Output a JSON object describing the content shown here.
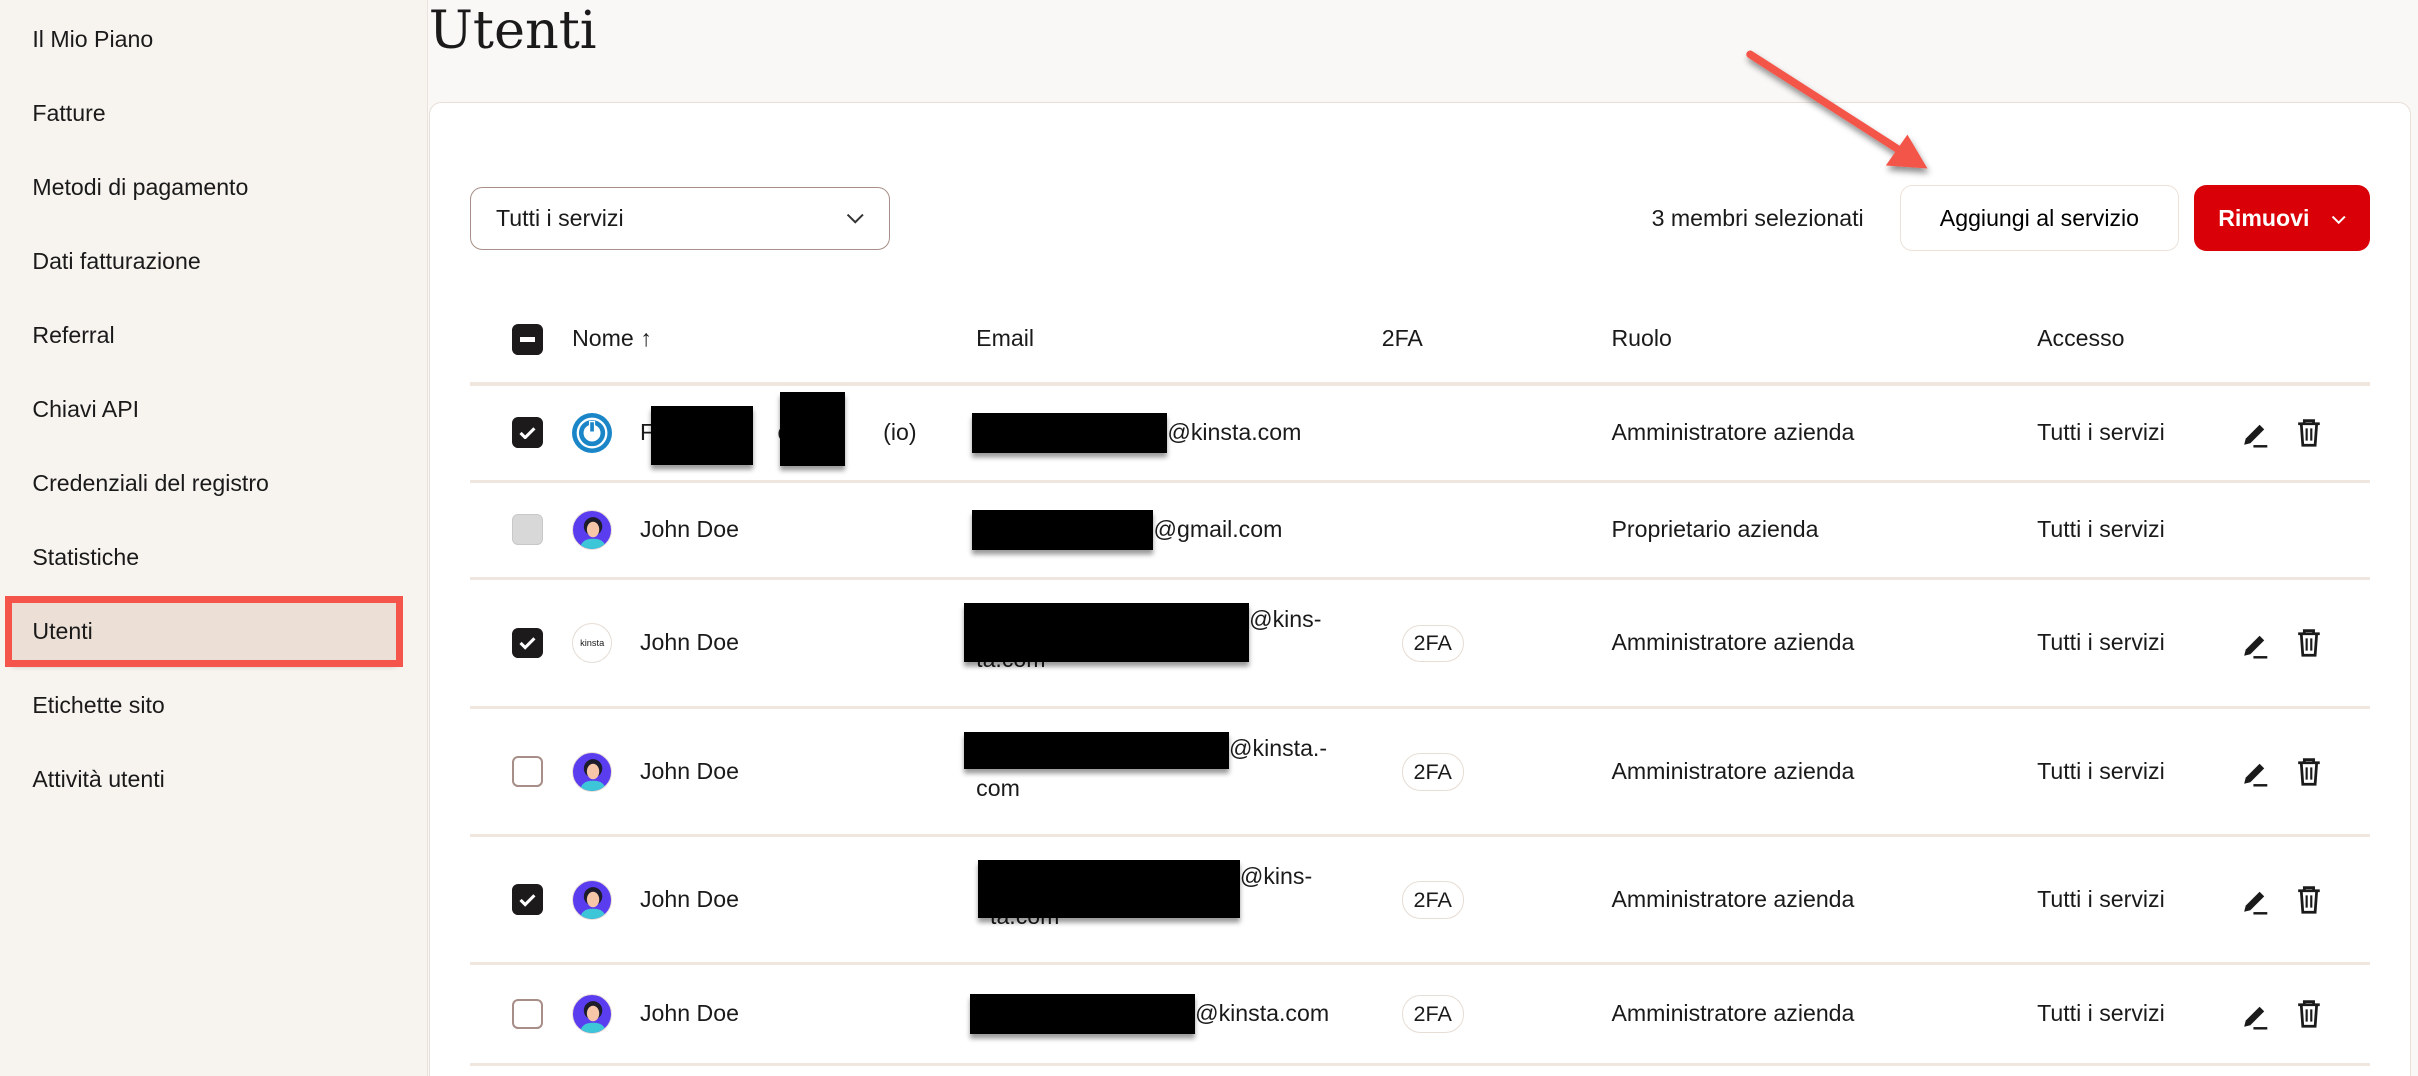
{
  "sidebar": {
    "items": [
      {
        "label": "Il Mio Piano"
      },
      {
        "label": "Fatture"
      },
      {
        "label": "Metodi di pagamento"
      },
      {
        "label": "Dati fatturazione"
      },
      {
        "label": "Referral"
      },
      {
        "label": "Chiavi API"
      },
      {
        "label": "Credenziali del registro"
      },
      {
        "label": "Statistiche"
      },
      {
        "label": "Utenti",
        "active": true
      },
      {
        "label": "Etichette sito"
      },
      {
        "label": "Attività utenti"
      }
    ]
  },
  "page": {
    "title": "Utenti"
  },
  "toolbar": {
    "filter_value": "Tutti i servizi",
    "selected_count": "3 membri selezionati",
    "add_label": "Aggiungi al servizio",
    "remove_label": "Rimuovi"
  },
  "colors": {
    "accent_red": "#d90008",
    "annotation": "#f4544a",
    "sidebar_bg": "#f7f3ef"
  },
  "table": {
    "headers": {
      "name": "Nome ↑",
      "email": "Email",
      "twofa": "2FA",
      "role": "Ruolo",
      "access": "Accesso"
    },
    "rows": [
      {
        "checkbox": "checked",
        "avatar": "power-icon",
        "name_parts": [
          "F",
          "V",
          "(io)"
        ],
        "email_line1": "@kinsta.com",
        "email_line2": "",
        "twofa": "",
        "role": "Amministratore azienda",
        "access": "Tutti i servizi",
        "actions": true
      },
      {
        "checkbox": "disabled",
        "avatar": "person-avatar",
        "name": "John Doe",
        "email_line1": "@gmail.com",
        "email_line2": "",
        "twofa": "",
        "role": "Proprietario azienda",
        "access": "Tutti i servizi",
        "actions": false
      },
      {
        "checkbox": "checked",
        "avatar": "kinsta-logo",
        "name": "John Doe",
        "email_line1": "@kins-",
        "email_line2": "ta.com",
        "twofa": "2FA",
        "role": "Amministratore azienda",
        "access": "Tutti i servizi",
        "actions": true
      },
      {
        "checkbox": "unchecked",
        "avatar": "person-avatar",
        "name": "John Doe",
        "email_line1": "@kinsta.-",
        "email_line2": "com",
        "twofa": "2FA",
        "role": "Amministratore azienda",
        "access": "Tutti i servizi",
        "actions": true
      },
      {
        "checkbox": "checked",
        "avatar": "person-avatar",
        "name": "John Doe",
        "email_line1": "@kins-",
        "email_line2": "ta.com",
        "twofa": "2FA",
        "role": "Amministratore azienda",
        "access": "Tutti i servizi",
        "actions": true
      },
      {
        "checkbox": "unchecked",
        "avatar": "person-avatar",
        "name": "John Doe",
        "email_line1": "@kinsta.com",
        "email_line2": "",
        "twofa": "2FA",
        "role": "Amministratore azienda",
        "access": "Tutti i servizi",
        "actions": true
      }
    ]
  },
  "avatar_text": "kinsta"
}
